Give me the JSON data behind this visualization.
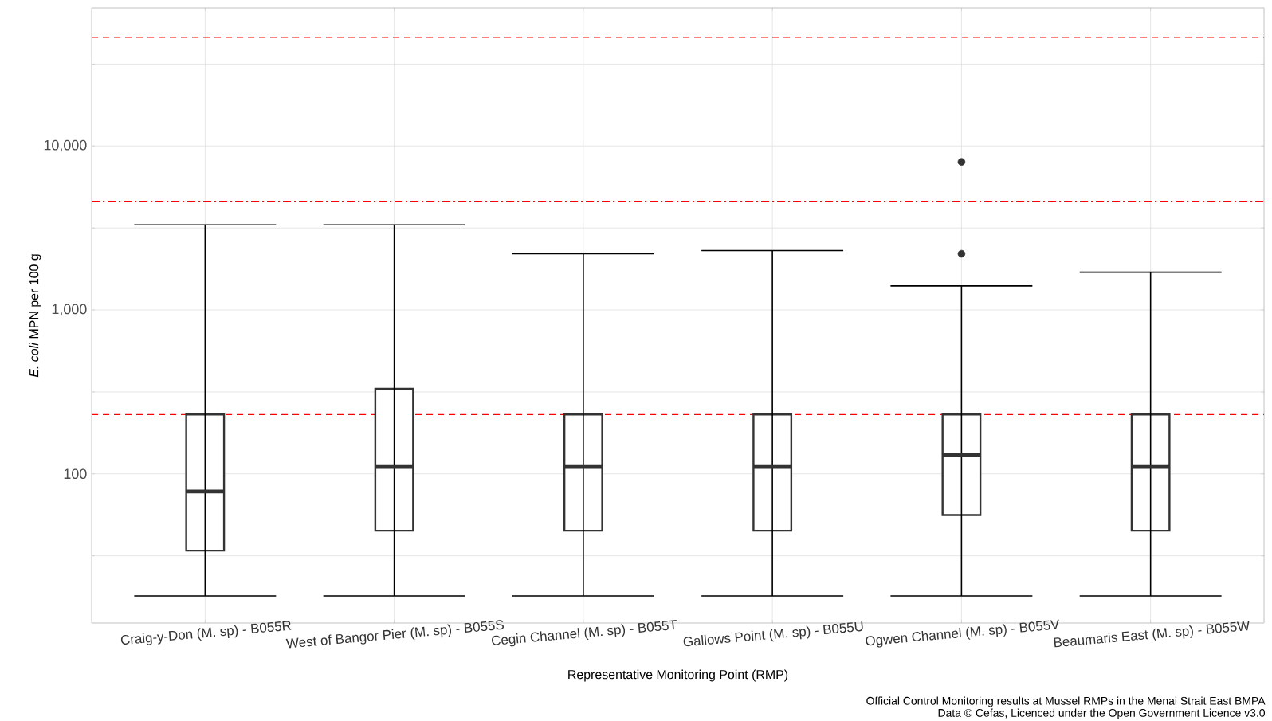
{
  "chart_data": {
    "type": "box",
    "categories": [
      "Craig-y-Don (M. sp) - B055R",
      "West of Bangor Pier (M. sp) - B055S",
      "Cegin Channel (M. sp) - B055T",
      "Gallows Point (M. sp) - B055U",
      "Ogwen Channel (M. sp) - B055V",
      "Beaumaris East (M. sp) - B055W"
    ],
    "boxes": [
      {
        "low": 18,
        "q1": 34,
        "median": 78,
        "q3": 230,
        "high": 3300
      },
      {
        "low": 18,
        "q1": 45,
        "median": 110,
        "q3": 330,
        "high": 3300
      },
      {
        "low": 18,
        "q1": 45,
        "median": 110,
        "q3": 230,
        "high": 2200
      },
      {
        "low": 18,
        "q1": 45,
        "median": 110,
        "q3": 230,
        "high": 2300
      },
      {
        "low": 18,
        "q1": 56,
        "median": 130,
        "q3": 230,
        "high": 1400,
        "outliers": [
          2200,
          8000
        ]
      },
      {
        "low": 18,
        "q1": 45,
        "median": 110,
        "q3": 230,
        "high": 1700
      }
    ],
    "color": "#ffffff",
    "xlabel": "Representative Monitoring Point (RMP)",
    "ylabel": "*E. coli* MPN per 100 g",
    "log": "y",
    "ylim": [
      12.3,
      69500
    ],
    "yticks": [
      {
        "value": 31.6,
        "label": null
      },
      {
        "value": 100,
        "label": "100"
      },
      {
        "value": 316,
        "label": null
      },
      {
        "value": 1000,
        "label": "1,000"
      },
      {
        "value": 3160,
        "label": null
      },
      {
        "value": 10000,
        "label": "10,000"
      },
      {
        "value": 31600,
        "label": null
      }
    ],
    "grid": true,
    "marker": "circle",
    "ref_lines": [
      {
        "axis": "y",
        "value": 46000,
        "color": "#ff0000",
        "line_style": "dashed"
      },
      {
        "axis": "y",
        "value": 4600,
        "color": "#ff0000",
        "line_style": "dashdot"
      },
      {
        "axis": "y",
        "value": 230,
        "color": "#ff0000",
        "line_style": "dashed"
      }
    ],
    "annotations": [
      "Official Control Monitoring results at Mussel RMPs in the Menai Strait East BMPA",
      "Data © Cefas, Licenced under the Open Government Licence v3.0"
    ]
  }
}
